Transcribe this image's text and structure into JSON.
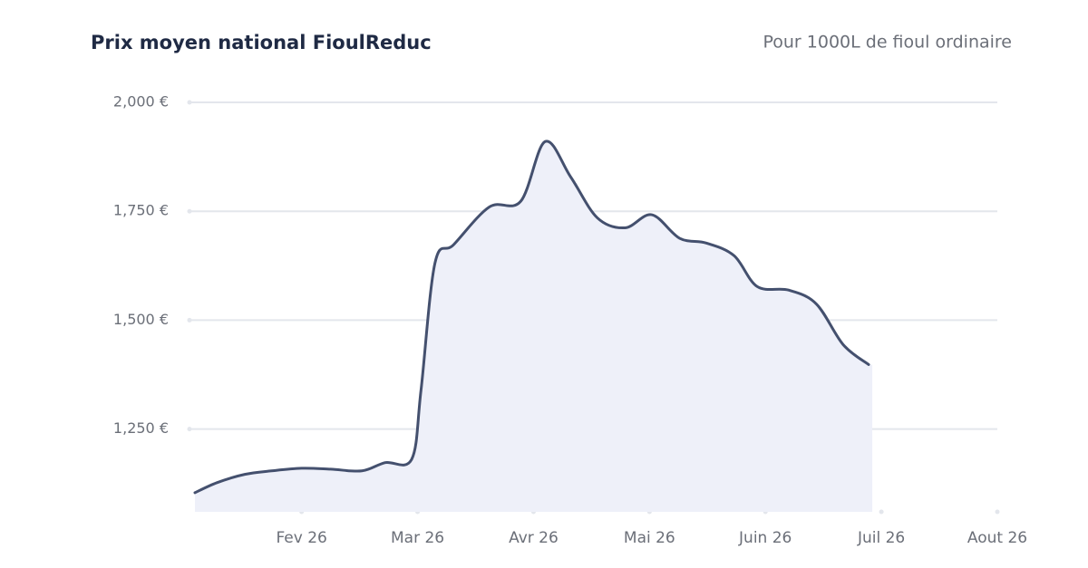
{
  "chart_data": {
    "type": "area",
    "title": "Prix moyen national FioulReduc",
    "subtitle": "Pour 1000L de fioul ordinaire",
    "x": [
      -0.92,
      -0.73,
      -0.49,
      -0.26,
      0,
      0.25,
      0.52,
      0.72,
      0.95,
      1.03,
      1.15,
      1.31,
      1.62,
      1.89,
      2.1,
      2.32,
      2.55,
      2.79,
      3.02,
      3.26,
      3.49,
      3.73,
      3.93,
      4.2,
      4.44,
      4.67,
      4.89
    ],
    "values": [
      1104,
      1127,
      1146,
      1154,
      1160,
      1158,
      1154,
      1173,
      1181,
      1340,
      1631,
      1673,
      1760,
      1773,
      1910,
      1829,
      1735,
      1712,
      1742,
      1688,
      1677,
      1648,
      1577,
      1569,
      1537,
      1444,
      1398
    ],
    "color": "#44506e",
    "fill": "#eef0f9",
    "xlim": [
      -0.92,
      6
    ],
    "xticks": [
      {
        "value": 0,
        "label": "Fev 26"
      },
      {
        "value": 1,
        "label": "Mar 26"
      },
      {
        "value": 2,
        "label": "Avr 26"
      },
      {
        "value": 3,
        "label": "Mai 26"
      },
      {
        "value": 4,
        "label": "Juin 26"
      },
      {
        "value": 5,
        "label": "Juil 26"
      },
      {
        "value": 6,
        "label": "Aout 26"
      }
    ],
    "ylim": [
      1060,
      2000
    ],
    "yticks": [
      {
        "value": 1250,
        "label": "1,250 €"
      },
      {
        "value": 1500,
        "label": "1,500 €"
      },
      {
        "value": 1750,
        "label": "1,750 €"
      },
      {
        "value": 2000,
        "label": "2,000 €"
      }
    ],
    "grid": true
  }
}
